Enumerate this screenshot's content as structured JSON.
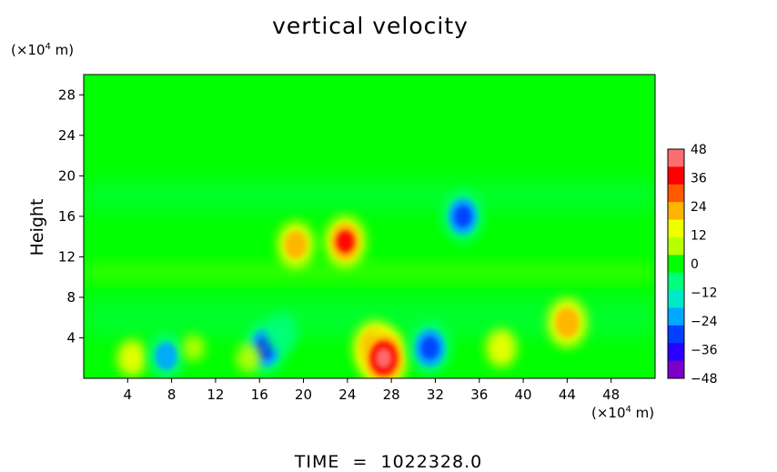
{
  "page": {
    "title": "vertical velocity",
    "y_unit": {
      "prefix": "(×10",
      "exp": "4",
      "suffix": " m)"
    },
    "x_unit": {
      "prefix": "(×10",
      "exp": "4",
      "suffix": " m)"
    },
    "ylabel": "Height",
    "time_label": "TIME",
    "time_eq": "=",
    "time_value": "1022328.0"
  },
  "colors": {
    "background_field": "#00ff00",
    "scale": [
      "#7b00c8",
      "#2a00ff",
      "#0040ff",
      "#00a8ff",
      "#00e8c8",
      "#00ff7a",
      "#00ff00",
      "#b8ff00",
      "#f0ff00",
      "#ffb400",
      "#ff5a00",
      "#ff0000",
      "#ff6e6e"
    ]
  },
  "chart_data": {
    "type": "heatmap",
    "title": "vertical velocity",
    "xlabel": "(×10⁴ m)",
    "ylabel": "Height",
    "ylabel_unit": "(×10⁴ m)",
    "xlim": [
      0,
      52
    ],
    "ylim": [
      0,
      30
    ],
    "x_ticks": [
      4,
      8,
      12,
      16,
      20,
      24,
      28,
      32,
      36,
      40,
      44,
      48
    ],
    "y_ticks": [
      4,
      8,
      12,
      16,
      20,
      24,
      28
    ],
    "colorbar": {
      "range": [
        -48,
        48
      ],
      "ticks": [
        48,
        36,
        24,
        12,
        0,
        -12,
        -24,
        -36,
        -48
      ]
    },
    "features": [
      {
        "x": 4.4,
        "y": 2.0,
        "value": 18
      },
      {
        "x": 7.5,
        "y": 2.2,
        "value": -30
      },
      {
        "x": 16.5,
        "y": 3.0,
        "value": -38
      },
      {
        "x": 18.0,
        "y": 4.5,
        "value": -22
      },
      {
        "x": 19.3,
        "y": 13.2,
        "value": 30
      },
      {
        "x": 23.8,
        "y": 13.5,
        "value": 36
      },
      {
        "x": 26.5,
        "y": 3.0,
        "value": 40
      },
      {
        "x": 27.3,
        "y": 2.0,
        "value": 48
      },
      {
        "x": 31.5,
        "y": 3.0,
        "value": -38
      },
      {
        "x": 34.5,
        "y": 16.0,
        "value": -36
      },
      {
        "x": 38.0,
        "y": 3.0,
        "value": 20
      },
      {
        "x": 44.0,
        "y": 5.5,
        "value": 34
      },
      {
        "x": 15.0,
        "y": 2.0,
        "value": 10
      },
      {
        "x": 10.0,
        "y": 3.0,
        "value": 6
      }
    ],
    "time": "1022328.0"
  }
}
